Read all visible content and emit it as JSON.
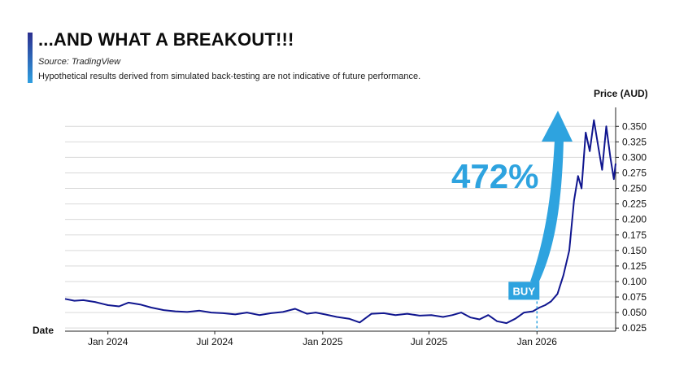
{
  "header": {
    "title": "...AND WHAT A BREAKOUT!!!",
    "source": "Source: TradingView",
    "disclaimer": "Hypothetical results derived from simulated back-testing are not indicative of future performance."
  },
  "colors": {
    "line": "#10168f",
    "accent": "#2ea3df",
    "grid": "#d9d9d9"
  },
  "chart_data": {
    "type": "line",
    "title": "",
    "xlabel": "Date",
    "ylabel": "Price (AUD)",
    "ylim": [
      0.02,
      0.37
    ],
    "y_ticks": [
      0.025,
      0.05,
      0.075,
      0.1,
      0.125,
      0.15,
      0.175,
      0.2,
      0.225,
      0.25,
      0.275,
      0.3,
      0.325,
      0.35
    ],
    "y_tick_labels": [
      "0.025",
      "0.050",
      "0.075",
      "0.100",
      "0.125",
      "0.150",
      "0.175",
      "0.200",
      "0.225",
      "0.250",
      "0.275",
      "0.300",
      "0.325",
      "0.350"
    ],
    "x_range": [
      "2023-10-20",
      "2026-05-15"
    ],
    "x_ticks": [
      "2024-01-01",
      "2024-07-01",
      "2025-01-01",
      "2025-07-01",
      "2026-01-01"
    ],
    "x_tick_labels": [
      "Jan 2024",
      "Jul 2024",
      "Jan 2025",
      "Jul 2025",
      "Jan 2026"
    ],
    "grid": true,
    "series": [
      {
        "x": [
          "2023-10-20",
          "2023-11-05",
          "2023-11-20",
          "2023-12-10",
          "2024-01-01",
          "2024-01-20",
          "2024-02-05",
          "2024-02-25",
          "2024-03-15",
          "2024-04-05",
          "2024-04-25",
          "2024-05-15",
          "2024-06-05",
          "2024-06-25",
          "2024-07-15",
          "2024-08-05",
          "2024-08-25",
          "2024-09-15",
          "2024-10-05",
          "2024-10-25",
          "2024-11-15",
          "2024-12-05",
          "2024-12-20",
          "2025-01-05",
          "2025-01-25",
          "2025-02-15",
          "2025-03-05",
          "2025-03-25",
          "2025-04-15",
          "2025-05-05",
          "2025-05-25",
          "2025-06-15",
          "2025-07-05",
          "2025-07-25",
          "2025-08-10",
          "2025-08-25",
          "2025-09-10",
          "2025-09-25",
          "2025-10-10",
          "2025-10-25",
          "2025-11-10",
          "2025-11-25",
          "2025-12-10",
          "2025-12-25",
          "2026-01-05",
          "2026-01-15",
          "2026-01-25",
          "2026-02-05",
          "2026-02-15",
          "2026-02-25",
          "2026-03-05",
          "2026-03-12",
          "2026-03-18",
          "2026-03-25",
          "2026-04-01",
          "2026-04-08",
          "2026-04-15",
          "2026-04-22",
          "2026-04-29",
          "2026-05-06",
          "2026-05-12",
          "2026-05-15"
        ],
        "y": [
          0.072,
          0.069,
          0.07,
          0.067,
          0.062,
          0.06,
          0.066,
          0.063,
          0.058,
          0.054,
          0.052,
          0.051,
          0.053,
          0.05,
          0.049,
          0.047,
          0.05,
          0.046,
          0.049,
          0.051,
          0.056,
          0.048,
          0.05,
          0.047,
          0.043,
          0.04,
          0.034,
          0.048,
          0.049,
          0.046,
          0.048,
          0.045,
          0.046,
          0.043,
          0.046,
          0.05,
          0.042,
          0.039,
          0.046,
          0.036,
          0.033,
          0.04,
          0.05,
          0.052,
          0.058,
          0.062,
          0.068,
          0.08,
          0.11,
          0.15,
          0.23,
          0.27,
          0.25,
          0.34,
          0.31,
          0.36,
          0.32,
          0.28,
          0.35,
          0.3,
          0.265,
          0.29
        ]
      }
    ],
    "annotations": [
      {
        "text": "472%"
      },
      {
        "text": "BUY",
        "x": "2026-01-01",
        "y": 0.068
      }
    ]
  }
}
